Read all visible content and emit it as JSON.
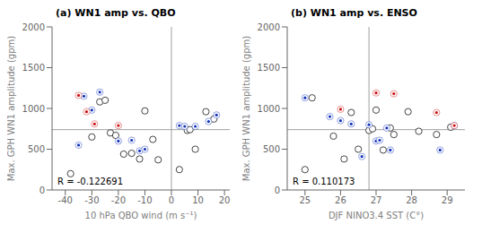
{
  "chart_data": [
    {
      "type": "scatter",
      "title": "(a) WN1 amp vs. QBO",
      "x_label": "10 hPa QBO wind (m s⁻¹)",
      "y_label": "Max. GPH WN1 amplitude (gpm)",
      "xlim": [
        -45,
        22
      ],
      "xticks": [
        -40,
        -30,
        -20,
        -10,
        0,
        10,
        20
      ],
      "ylim": [
        0,
        2000
      ],
      "yticks": [
        0,
        500,
        1000,
        1500,
        2000
      ],
      "grid": false,
      "hline": 740,
      "vline": 0,
      "annotations": [
        "R = -0.122691"
      ],
      "series": [
        {
          "color": "#444444",
          "marker": "open_circle",
          "x": [
            -38,
            -30,
            -27,
            -25,
            -23,
            -21,
            -18,
            -15,
            -12,
            -10,
            -7,
            -5,
            3,
            6,
            7,
            9,
            13,
            16
          ],
          "values": [
            200,
            650,
            1080,
            1100,
            700,
            670,
            440,
            450,
            380,
            970,
            620,
            370,
            250,
            730,
            740,
            500,
            960,
            870
          ]
        },
        {
          "color": "#1133bb",
          "marker": "dotted_circle",
          "x": [
            -35,
            -33,
            -30,
            -27,
            -20,
            -15,
            -12,
            -10,
            3,
            5,
            9,
            14,
            17
          ],
          "values": [
            550,
            1150,
            980,
            1200,
            600,
            610,
            480,
            500,
            790,
            780,
            780,
            840,
            920
          ]
        },
        {
          "color": "#cc1111",
          "marker": "dotted_circle",
          "x": [
            -35,
            -32,
            -29,
            -20
          ],
          "values": [
            1160,
            960,
            810,
            790
          ]
        }
      ]
    },
    {
      "type": "scatter",
      "title": "(b) WN1 amp vs. ENSO",
      "x_label": "DJF NINO3.4 SST (C°)",
      "y_label": "Max. GPH WN1 amplitude (gpm)",
      "xlim": [
        24.5,
        29.5
      ],
      "xticks": [
        25,
        26,
        27,
        28,
        29
      ],
      "ylim": [
        0,
        2000
      ],
      "yticks": [
        0,
        500,
        1000,
        1500,
        2000
      ],
      "grid": false,
      "hline": 740,
      "vline": 26.8,
      "annotations": [
        "R = 0.110173"
      ],
      "series": [
        {
          "color": "#444444",
          "marker": "open_circle",
          "x": [
            25.0,
            25.2,
            25.8,
            26.1,
            26.3,
            26.5,
            26.8,
            26.9,
            27.0,
            27.2,
            27.4,
            27.5,
            27.9,
            28.2,
            28.7,
            29.1
          ],
          "values": [
            250,
            1130,
            660,
            380,
            950,
            500,
            730,
            750,
            980,
            490,
            760,
            680,
            960,
            720,
            680,
            770
          ]
        },
        {
          "color": "#1133bb",
          "marker": "dotted_circle",
          "x": [
            25.0,
            25.7,
            26.0,
            26.3,
            26.6,
            26.8,
            27.0,
            27.1,
            27.3,
            27.4,
            28.8,
            29.2
          ],
          "values": [
            1130,
            900,
            850,
            810,
            410,
            800,
            600,
            610,
            760,
            490,
            490,
            790
          ]
        },
        {
          "color": "#cc1111",
          "marker": "dotted_circle",
          "x": [
            26.0,
            27.0,
            27.5,
            28.7,
            29.2
          ],
          "values": [
            990,
            1190,
            1180,
            950,
            790
          ]
        }
      ]
    }
  ]
}
